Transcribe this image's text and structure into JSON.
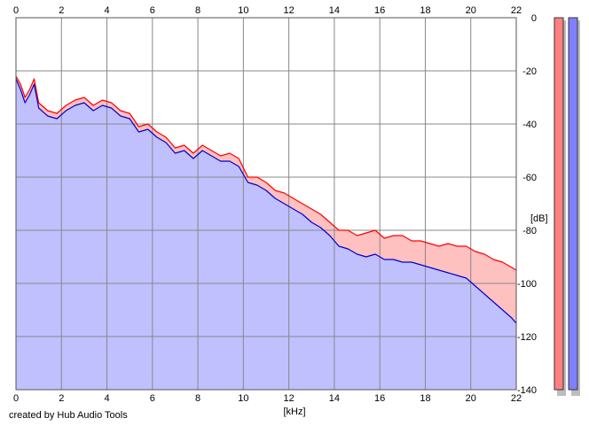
{
  "chart_data": {
    "type": "area",
    "title": "",
    "xlabel": "[kHz]",
    "ylabel": "[dB]",
    "xlim": [
      0,
      22
    ],
    "ylim": [
      -140,
      0
    ],
    "x_ticks": [
      "0",
      "2",
      "4",
      "6",
      "8",
      "10",
      "12",
      "14",
      "16",
      "18",
      "20",
      "22"
    ],
    "y_ticks": [
      "0",
      "-20",
      "-40",
      "-60",
      "-80",
      "-100",
      "-120",
      "-140"
    ],
    "grid": true,
    "series": [
      {
        "color": "#ff0000",
        "fill": "#ffc0c0",
        "x": [
          0,
          0.2,
          0.4,
          0.6,
          0.8,
          1.0,
          1.4,
          1.8,
          2.2,
          2.6,
          3.0,
          3.4,
          3.8,
          4.2,
          4.6,
          5.0,
          5.4,
          5.8,
          6.2,
          6.6,
          7.0,
          7.4,
          7.8,
          8.2,
          8.6,
          9.0,
          9.4,
          9.8,
          10.2,
          10.6,
          11.0,
          11.4,
          11.8,
          12.2,
          12.6,
          13.0,
          13.4,
          13.8,
          14.2,
          14.6,
          15.0,
          15.4,
          15.8,
          16.2,
          16.6,
          17.0,
          17.4,
          17.8,
          18.2,
          18.6,
          19.0,
          19.4,
          19.8,
          20.2,
          20.6,
          21.0,
          21.4,
          21.8,
          22.0
        ],
        "values": [
          -22,
          -25,
          -30,
          -27,
          -23,
          -32,
          -35,
          -36,
          -33,
          -31,
          -30,
          -33,
          -31,
          -32,
          -35,
          -36,
          -41,
          -40,
          -43,
          -45,
          -49,
          -48,
          -51,
          -48,
          -50,
          -52,
          -51,
          -53,
          -60,
          -60,
          -62,
          -65,
          -66,
          -68,
          -70,
          -72,
          -74,
          -77,
          -80,
          -80,
          -82,
          -81,
          -80,
          -83,
          -82,
          -82,
          -84,
          -84,
          -85,
          -86,
          -85,
          -86,
          -86,
          -88,
          -89,
          -91,
          -92,
          -94,
          -95
        ]
      },
      {
        "color": "#0000cc",
        "fill": "#c0c0ff",
        "x": [
          0,
          0.2,
          0.4,
          0.6,
          0.8,
          1.0,
          1.4,
          1.8,
          2.2,
          2.6,
          3.0,
          3.4,
          3.8,
          4.2,
          4.6,
          5.0,
          5.4,
          5.8,
          6.2,
          6.6,
          7.0,
          7.4,
          7.8,
          8.2,
          8.6,
          9.0,
          9.4,
          9.8,
          10.2,
          10.6,
          11.0,
          11.4,
          11.8,
          12.2,
          12.6,
          13.0,
          13.4,
          13.8,
          14.2,
          14.6,
          15.0,
          15.4,
          15.8,
          16.2,
          16.6,
          17.0,
          17.4,
          17.8,
          18.2,
          18.6,
          19.0,
          19.4,
          19.8,
          20.2,
          20.6,
          21.0,
          21.4,
          21.8,
          22.0
        ],
        "values": [
          -23,
          -27,
          -32,
          -29,
          -25,
          -34,
          -37,
          -38,
          -35,
          -33,
          -32,
          -35,
          -33,
          -34,
          -37,
          -38,
          -43,
          -42,
          -45,
          -47,
          -51,
          -50,
          -53,
          -50,
          -52,
          -54,
          -54,
          -56,
          -62,
          -63,
          -65,
          -68,
          -70,
          -72,
          -74,
          -77,
          -79,
          -82,
          -86,
          -87,
          -89,
          -90,
          -89,
          -91,
          -91,
          -92,
          -92,
          -93,
          -94,
          -95,
          -96,
          -97,
          -98,
          -101,
          -104,
          -107,
          -110,
          -113,
          -115
        ]
      }
    ],
    "level_meters": [
      {
        "color": "#ff8080"
      },
      {
        "color": "#8080ff"
      }
    ]
  },
  "footer": {
    "credit": "created by Hub Audio Tools"
  }
}
